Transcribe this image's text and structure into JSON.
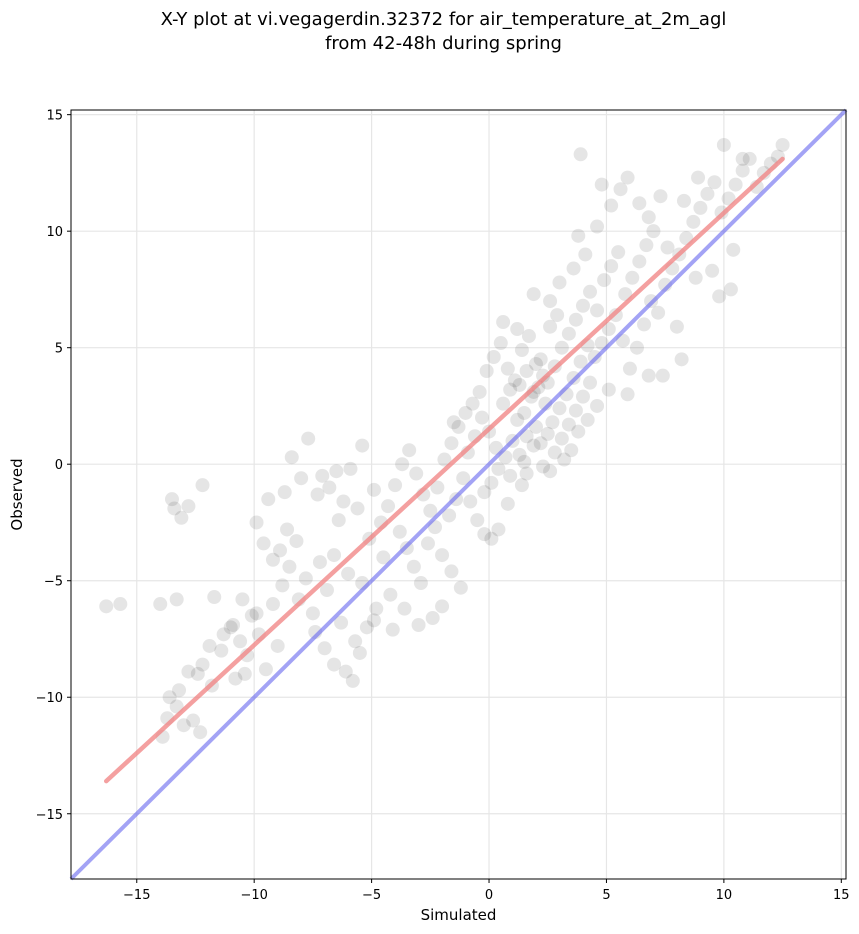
{
  "chart_data": {
    "type": "scatter",
    "title_line1": "X-Y plot at vi.vegagerdin.32372 for air_temperature_at_2m_agl",
    "title_line2": "from 42-48h during spring",
    "xlabel": "Simulated",
    "ylabel": "Observed",
    "xlim": [
      -17.8,
      15.2
    ],
    "ylim": [
      -17.8,
      15.2
    ],
    "xticks": [
      -15,
      -10,
      -5,
      0,
      5,
      10,
      15
    ],
    "yticks": [
      -15,
      -10,
      -5,
      0,
      5,
      10,
      15
    ],
    "xticklabels": [
      "−15",
      "−10",
      "−5",
      "0",
      "5",
      "10",
      "15"
    ],
    "yticklabels": [
      "−15",
      "−10",
      "−5",
      "0",
      "5",
      "10",
      "15"
    ],
    "grid": true,
    "colors": {
      "points": "#000000",
      "fit_line": "#f08080",
      "identity_line": "#6666ee"
    },
    "fit_line": {
      "x": [
        -16.3,
        12.5
      ],
      "y": [
        -13.6,
        13.1
      ]
    },
    "identity_line": {
      "x": [
        -17.8,
        15.2
      ],
      "y": [
        -17.8,
        15.2
      ]
    },
    "points": [
      [
        -16.3,
        -6.1
      ],
      [
        -15.7,
        -6.0
      ],
      [
        -14.0,
        -6.0
      ],
      [
        -13.3,
        -5.8
      ],
      [
        -11.7,
        -5.7
      ],
      [
        -13.5,
        -1.5
      ],
      [
        -13.4,
        -1.9
      ],
      [
        -13.1,
        -2.3
      ],
      [
        -12.8,
        -1.8
      ],
      [
        -12.2,
        -0.9
      ],
      [
        -13.6,
        -10.0
      ],
      [
        -13.3,
        -10.4
      ],
      [
        -13.7,
        -10.9
      ],
      [
        -13.9,
        -11.7
      ],
      [
        -13.0,
        -11.2
      ],
      [
        -12.6,
        -11.0
      ],
      [
        -12.3,
        -11.5
      ],
      [
        -13.2,
        -9.7
      ],
      [
        -12.8,
        -8.9
      ],
      [
        -12.2,
        -8.6
      ],
      [
        -11.8,
        -9.5
      ],
      [
        -11.4,
        -8.0
      ],
      [
        -11.0,
        -7.0
      ],
      [
        -10.6,
        -7.6
      ],
      [
        -10.3,
        -8.2
      ],
      [
        -10.1,
        -6.5
      ],
      [
        -9.8,
        -7.3
      ],
      [
        -9.5,
        -8.8
      ],
      [
        -9.2,
        -6.0
      ],
      [
        -9.0,
        -7.8
      ],
      [
        -10.8,
        -9.2
      ],
      [
        -10.4,
        -9.0
      ],
      [
        -9.9,
        -6.4
      ],
      [
        -8.7,
        -1.2
      ],
      [
        -8.8,
        -5.2
      ],
      [
        -8.4,
        0.3
      ],
      [
        -8.0,
        -0.6
      ],
      [
        -7.7,
        1.1
      ],
      [
        -7.3,
        -1.3
      ],
      [
        -7.1,
        -0.5
      ],
      [
        -6.8,
        -1.0
      ],
      [
        -6.5,
        -0.3
      ],
      [
        -6.2,
        -1.6
      ],
      [
        -8.6,
        -2.8
      ],
      [
        -8.2,
        -3.3
      ],
      [
        -8.5,
        -4.4
      ],
      [
        -8.1,
        -5.8
      ],
      [
        -7.8,
        -4.9
      ],
      [
        -7.5,
        -6.4
      ],
      [
        -7.2,
        -4.2
      ],
      [
        -6.9,
        -5.4
      ],
      [
        -6.6,
        -3.9
      ],
      [
        -6.3,
        -6.8
      ],
      [
        -6.0,
        -4.7
      ],
      [
        -5.7,
        -7.6
      ],
      [
        -5.4,
        -5.1
      ],
      [
        -5.1,
        -3.2
      ],
      [
        -4.8,
        -6.2
      ],
      [
        -4.5,
        -4.0
      ],
      [
        -4.2,
        -5.6
      ],
      [
        -7.4,
        -7.2
      ],
      [
        -7.0,
        -7.9
      ],
      [
        -6.6,
        -8.6
      ],
      [
        -6.1,
        -8.9
      ],
      [
        -5.8,
        -9.3
      ],
      [
        -5.5,
        -8.1
      ],
      [
        -5.2,
        -7.0
      ],
      [
        -4.9,
        -6.7
      ],
      [
        -4.6,
        -2.5
      ],
      [
        -4.3,
        -1.8
      ],
      [
        -4.0,
        -0.9
      ],
      [
        -3.7,
        0.0
      ],
      [
        -3.4,
        0.6
      ],
      [
        -3.1,
        -0.4
      ],
      [
        -2.8,
        -1.3
      ],
      [
        -2.5,
        -2.0
      ],
      [
        -2.2,
        -1.0
      ],
      [
        -1.9,
        0.2
      ],
      [
        -1.6,
        0.9
      ],
      [
        -1.3,
        1.6
      ],
      [
        -3.8,
        -2.9
      ],
      [
        -3.5,
        -3.6
      ],
      [
        -3.2,
        -4.4
      ],
      [
        -2.9,
        -5.1
      ],
      [
        -2.6,
        -3.4
      ],
      [
        -2.3,
        -2.7
      ],
      [
        -2.0,
        -3.9
      ],
      [
        -1.7,
        -2.2
      ],
      [
        -1.4,
        -1.5
      ],
      [
        -1.1,
        -0.6
      ],
      [
        -1.6,
        -4.6
      ],
      [
        -1.2,
        -5.3
      ],
      [
        -2.0,
        -6.1
      ],
      [
        -2.4,
        -6.6
      ],
      [
        -3.0,
        -6.9
      ],
      [
        -3.6,
        -6.2
      ],
      [
        -4.1,
        -7.1
      ],
      [
        -0.9,
        0.5
      ],
      [
        -0.6,
        1.2
      ],
      [
        -0.3,
        2.0
      ],
      [
        0.0,
        1.4
      ],
      [
        0.3,
        0.7
      ],
      [
        0.6,
        2.6
      ],
      [
        0.9,
        3.2
      ],
      [
        1.2,
        1.9
      ],
      [
        -0.8,
        -1.6
      ],
      [
        -0.5,
        -2.4
      ],
      [
        -0.2,
        -3.0
      ],
      [
        0.1,
        -0.8
      ],
      [
        0.4,
        -0.2
      ],
      [
        0.7,
        0.3
      ],
      [
        1.0,
        1.0
      ],
      [
        1.3,
        0.4
      ],
      [
        1.6,
        -0.4
      ],
      [
        1.9,
        0.8
      ],
      [
        0.2,
        4.6
      ],
      [
        0.5,
        5.2
      ],
      [
        0.8,
        4.1
      ],
      [
        1.1,
        3.6
      ],
      [
        1.4,
        4.9
      ],
      [
        1.7,
        5.5
      ],
      [
        2.0,
        4.3
      ],
      [
        2.3,
        3.8
      ],
      [
        2.6,
        5.9
      ],
      [
        2.9,
        6.4
      ],
      [
        1.5,
        2.2
      ],
      [
        1.8,
        2.9
      ],
      [
        2.1,
        3.3
      ],
      [
        2.4,
        2.6
      ],
      [
        2.7,
        1.8
      ],
      [
        3.0,
        2.4
      ],
      [
        3.3,
        3.0
      ],
      [
        3.6,
        3.7
      ],
      [
        3.9,
        4.4
      ],
      [
        4.2,
        5.1
      ],
      [
        1.6,
        1.2
      ],
      [
        2.0,
        1.6
      ],
      [
        2.2,
        0.9
      ],
      [
        2.5,
        1.3
      ],
      [
        2.8,
        0.5
      ],
      [
        3.1,
        1.1
      ],
      [
        3.4,
        1.7
      ],
      [
        3.7,
        2.3
      ],
      [
        4.0,
        2.9
      ],
      [
        4.3,
        3.5
      ],
      [
        1.3,
        3.4
      ],
      [
        1.6,
        4.0
      ],
      [
        1.9,
        3.1
      ],
      [
        2.2,
        4.5
      ],
      [
        2.5,
        3.5
      ],
      [
        2.8,
        4.2
      ],
      [
        3.1,
        5.0
      ],
      [
        3.4,
        5.6
      ],
      [
        3.7,
        6.2
      ],
      [
        4.0,
        6.8
      ],
      [
        4.3,
        7.4
      ],
      [
        4.6,
        6.6
      ],
      [
        4.9,
        7.9
      ],
      [
        5.2,
        8.5
      ],
      [
        5.5,
        9.1
      ],
      [
        5.8,
        7.3
      ],
      [
        6.1,
        8.0
      ],
      [
        6.4,
        8.7
      ],
      [
        6.7,
        9.4
      ],
      [
        7.0,
        10.0
      ],
      [
        4.5,
        4.6
      ],
      [
        4.8,
        5.2
      ],
      [
        5.1,
        5.8
      ],
      [
        5.4,
        6.4
      ],
      [
        5.7,
        5.3
      ],
      [
        6.0,
        4.1
      ],
      [
        6.3,
        5.0
      ],
      [
        6.6,
        6.0
      ],
      [
        6.9,
        7.0
      ],
      [
        7.2,
        6.5
      ],
      [
        7.5,
        7.7
      ],
      [
        7.8,
        8.4
      ],
      [
        8.1,
        9.0
      ],
      [
        8.4,
        9.7
      ],
      [
        8.7,
        10.4
      ],
      [
        9.0,
        11.0
      ],
      [
        9.3,
        11.6
      ],
      [
        9.6,
        12.1
      ],
      [
        9.9,
        10.8
      ],
      [
        10.2,
        11.4
      ],
      [
        10.5,
        12.0
      ],
      [
        10.8,
        12.6
      ],
      [
        11.1,
        13.1
      ],
      [
        11.4,
        11.9
      ],
      [
        11.7,
        12.5
      ],
      [
        12.0,
        12.9
      ],
      [
        12.3,
        13.2
      ],
      [
        12.5,
        13.7
      ],
      [
        10.0,
        13.7
      ],
      [
        10.8,
        13.1
      ],
      [
        3.9,
        13.3
      ],
      [
        4.8,
        12.0
      ],
      [
        5.6,
        11.8
      ],
      [
        5.9,
        12.3
      ],
      [
        6.4,
        11.2
      ],
      [
        5.2,
        11.1
      ],
      [
        4.6,
        10.2
      ],
      [
        3.8,
        9.8
      ],
      [
        4.1,
        9.0
      ],
      [
        3.6,
        8.4
      ],
      [
        8.0,
        5.9
      ],
      [
        8.2,
        4.5
      ],
      [
        7.4,
        3.8
      ],
      [
        6.8,
        3.8
      ],
      [
        5.9,
        3.0
      ],
      [
        5.1,
        3.2
      ],
      [
        4.6,
        2.5
      ],
      [
        4.2,
        1.9
      ],
      [
        3.8,
        1.4
      ],
      [
        3.2,
        0.2
      ],
      [
        2.6,
        -0.3
      ],
      [
        1.4,
        -0.9
      ],
      [
        0.8,
        -1.7
      ],
      [
        0.4,
        -2.8
      ],
      [
        0.1,
        -3.2
      ],
      [
        9.8,
        7.2
      ],
      [
        10.3,
        7.5
      ],
      [
        9.5,
        8.3
      ],
      [
        8.8,
        8.0
      ],
      [
        10.4,
        9.2
      ],
      [
        7.3,
        11.5
      ],
      [
        8.3,
        11.3
      ],
      [
        8.9,
        12.3
      ],
      [
        6.8,
        10.6
      ],
      [
        7.6,
        9.3
      ],
      [
        1.9,
        7.3
      ],
      [
        2.6,
        7.0
      ],
      [
        3.0,
        7.8
      ],
      [
        1.2,
        5.8
      ],
      [
        0.6,
        6.1
      ],
      [
        -0.4,
        3.1
      ],
      [
        -0.1,
        4.0
      ],
      [
        -0.7,
        2.6
      ],
      [
        -1.0,
        2.2
      ],
      [
        -1.5,
        1.8
      ],
      [
        -0.2,
        -1.2
      ],
      [
        0.9,
        -0.5
      ],
      [
        1.5,
        0.1
      ],
      [
        2.3,
        -0.1
      ],
      [
        3.5,
        0.6
      ],
      [
        -9.6,
        -3.4
      ],
      [
        -9.2,
        -4.1
      ],
      [
        -8.9,
        -3.7
      ],
      [
        -9.4,
        -1.5
      ],
      [
        -9.9,
        -2.5
      ],
      [
        -10.5,
        -5.8
      ],
      [
        -10.9,
        -6.9
      ],
      [
        -11.3,
        -7.3
      ],
      [
        -11.9,
        -7.8
      ],
      [
        -12.4,
        -9.0
      ],
      [
        -5.4,
        0.8
      ],
      [
        -5.9,
        -0.2
      ],
      [
        -6.4,
        -2.4
      ],
      [
        -5.6,
        -1.9
      ],
      [
        -4.9,
        -1.1
      ]
    ]
  }
}
